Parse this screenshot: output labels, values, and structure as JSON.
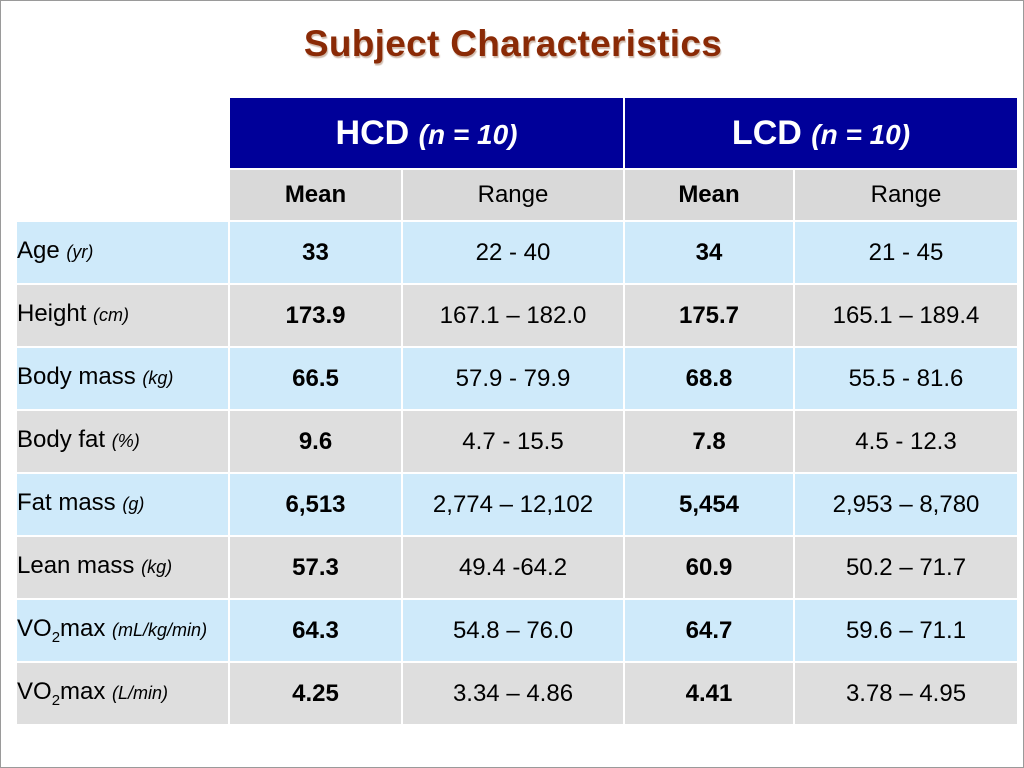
{
  "title": "Subject Characteristics",
  "groups": [
    {
      "name": "HCD",
      "n": "(n = 10)"
    },
    {
      "name": "LCD",
      "n": "(n = 10)"
    }
  ],
  "subheaders": {
    "mean": "Mean",
    "range": "Range"
  },
  "rows": [
    {
      "label": "Age",
      "sub": "",
      "label_rest": "",
      "unit": "(yr)",
      "hcd_mean": "33",
      "hcd_range": "22 - 40",
      "lcd_mean": "34",
      "lcd_range": "21 - 45"
    },
    {
      "label": "Height",
      "sub": "",
      "label_rest": "",
      "unit": "(cm)",
      "hcd_mean": "173.9",
      "hcd_range": "167.1 – 182.0",
      "lcd_mean": "175.7",
      "lcd_range": "165.1 – 189.4"
    },
    {
      "label": "Body mass",
      "sub": "",
      "label_rest": "",
      "unit": "(kg)",
      "hcd_mean": "66.5",
      "hcd_range": "57.9 - 79.9",
      "lcd_mean": "68.8",
      "lcd_range": "55.5 - 81.6"
    },
    {
      "label": "Body fat",
      "sub": "",
      "label_rest": "",
      "unit": "(%)",
      "hcd_mean": "9.6",
      "hcd_range": "4.7 - 15.5",
      "lcd_mean": "7.8",
      "lcd_range": "4.5 - 12.3"
    },
    {
      "label": "Fat mass",
      "sub": "",
      "label_rest": "",
      "unit": "(g)",
      "hcd_mean": "6,513",
      "hcd_range": "2,774 – 12,102",
      "lcd_mean": "5,454",
      "lcd_range": "2,953 – 8,780"
    },
    {
      "label": "Lean mass",
      "sub": "",
      "label_rest": "",
      "unit": "(kg)",
      "hcd_mean": "57.3",
      "hcd_range": "49.4 -64.2",
      "lcd_mean": "60.9",
      "lcd_range": "50.2 – 71.7"
    },
    {
      "label": "VO",
      "sub": "2",
      "label_rest": "max",
      "unit": "(mL/kg/min)",
      "hcd_mean": "64.3",
      "hcd_range": "54.8 – 76.0",
      "lcd_mean": "64.7",
      "lcd_range": "59.6 – 71.1"
    },
    {
      "label": "VO",
      "sub": "2",
      "label_rest": "max",
      "unit": "(L/min)",
      "hcd_mean": "4.25",
      "hcd_range": "3.34 – 4.86",
      "lcd_mean": "4.41",
      "lcd_range": "3.78 – 4.95"
    }
  ],
  "colors": {
    "title": "#8a2a06",
    "group_header_bg": "#000099",
    "subheader_bg": "#d9d9d9",
    "row_light": "#cfeafa",
    "row_grey": "#dedede"
  }
}
